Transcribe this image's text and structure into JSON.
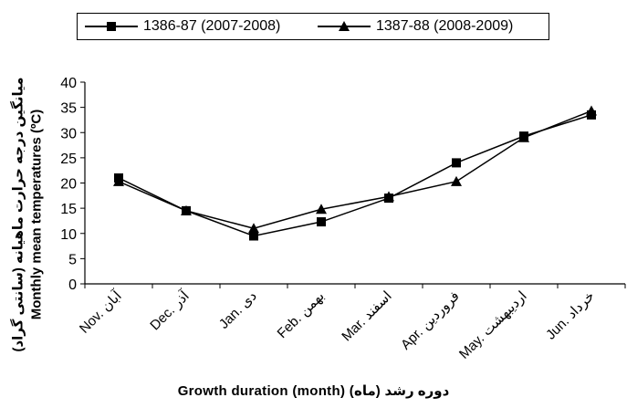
{
  "chart_data": {
    "type": "line",
    "categories": [
      "Nov. آبان",
      "Dec. آذر",
      "Jan. دی",
      "Feb. بهمن",
      "Mar. اسفند",
      "Apr. فروردین",
      "May. اردیبهشت",
      "Jun. خرداد"
    ],
    "series": [
      {
        "name": "1386-87 (2007-2008)",
        "marker": "square",
        "values": [
          21,
          14.5,
          9.5,
          12.3,
          17,
          24,
          29.3,
          33.5
        ]
      },
      {
        "name": "1387-88 (2008-2009)",
        "marker": "triangle",
        "values": [
          20.3,
          14.5,
          11,
          14.8,
          17.3,
          20.3,
          29,
          34.3
        ]
      }
    ],
    "title": "",
    "xlabel": "Growth duration (month) (ماه) دوره رشد",
    "ylabel": "Monthly mean temperatures (ºC)",
    "ylabel_fa": "میانگین درجه حرارت ماهیانه (سانتی گراد)",
    "ylim": [
      0,
      40
    ],
    "yticks": [
      "0",
      "5",
      "10",
      "15",
      "20",
      "25",
      "30",
      "35",
      "40"
    ],
    "grid": false,
    "legend_position": "top",
    "colors": {
      "line": "#000000",
      "marker": "#000000",
      "axis": "#000000"
    }
  }
}
